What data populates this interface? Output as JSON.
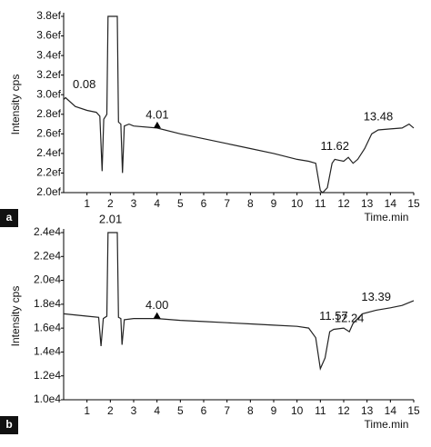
{
  "chart_data": [
    {
      "type": "line",
      "panel_label": "a",
      "ylabel": "Intensity cps",
      "xlabel": "Time.min",
      "color": "#222",
      "xlim": [
        0,
        15
      ],
      "xticks": [
        1,
        2,
        3,
        4,
        5,
        6,
        7,
        8,
        9,
        10,
        11,
        12,
        13,
        14,
        15
      ],
      "ylim": [
        2.0,
        3.8
      ],
      "yticks": [
        {
          "value": 2.0,
          "label": "2.0ef"
        },
        {
          "value": 2.2,
          "label": "2.2ef"
        },
        {
          "value": 2.4,
          "label": "2.4ef"
        },
        {
          "value": 2.6,
          "label": "2.6ef"
        },
        {
          "value": 2.8,
          "label": "2.8ef"
        },
        {
          "value": 3.0,
          "label": "3.0ef"
        },
        {
          "value": 3.2,
          "label": "3.2ef"
        },
        {
          "value": 3.4,
          "label": "3.4ef"
        },
        {
          "value": 3.6,
          "label": "3.6ef"
        },
        {
          "value": 3.8,
          "label": "3.8ef"
        }
      ],
      "x": [
        0,
        0.08,
        0.5,
        1.0,
        1.4,
        1.55,
        1.65,
        1.72,
        1.8,
        1.85,
        1.9,
        2.3,
        2.35,
        2.45,
        2.52,
        2.6,
        2.8,
        3,
        4,
        5,
        6,
        7,
        8,
        9,
        10,
        10.5,
        10.8,
        11.0,
        11.1,
        11.3,
        11.5,
        11.62,
        11.8,
        12.0,
        12.2,
        12.4,
        12.6,
        12.9,
        13.2,
        13.48,
        14,
        14.5,
        14.8,
        15
      ],
      "values": [
        2.95,
        2.97,
        2.88,
        2.84,
        2.82,
        2.78,
        2.22,
        2.75,
        2.78,
        2.8,
        3.8,
        3.8,
        2.72,
        2.7,
        2.2,
        2.68,
        2.7,
        2.68,
        2.66,
        2.6,
        2.55,
        2.5,
        2.45,
        2.4,
        2.34,
        2.32,
        2.3,
        2.02,
        2.0,
        2.05,
        2.3,
        2.34,
        2.33,
        2.32,
        2.36,
        2.3,
        2.34,
        2.45,
        2.6,
        2.64,
        2.65,
        2.66,
        2.7,
        2.66
      ],
      "annotations": [
        {
          "text": "0.08",
          "x": 0.08
        },
        {
          "text": "4.01",
          "x": 4.01,
          "marker": "triangle"
        },
        {
          "text": "11.62",
          "x": 11.62
        },
        {
          "text": "13.48",
          "x": 13.48
        }
      ]
    },
    {
      "type": "line",
      "panel_label": "b",
      "ylabel": "Intensity cps",
      "xlabel": "Time.min",
      "color": "#222",
      "xlim": [
        0,
        15
      ],
      "xticks": [
        1,
        2,
        3,
        4,
        5,
        6,
        7,
        8,
        9,
        10,
        11,
        12,
        13,
        14,
        15
      ],
      "ylim": [
        10000,
        24000
      ],
      "yticks": [
        {
          "value": 10000,
          "label": "1.0e4"
        },
        {
          "value": 12000,
          "label": "1.2e4"
        },
        {
          "value": 14000,
          "label": "1.4e4"
        },
        {
          "value": 16000,
          "label": "1.6e4"
        },
        {
          "value": 18000,
          "label": "1.8e4"
        },
        {
          "value": 20000,
          "label": "2.0e4"
        },
        {
          "value": 22000,
          "label": "2.2e4"
        },
        {
          "value": 24000,
          "label": "2.4e4"
        }
      ],
      "x": [
        0,
        1,
        1.5,
        1.6,
        1.7,
        1.85,
        1.9,
        2.3,
        2.35,
        2.45,
        2.5,
        2.6,
        3,
        4,
        5,
        6,
        7,
        8,
        9,
        10,
        10.5,
        10.8,
        11.0,
        11.2,
        11.4,
        11.57,
        12.0,
        12.24,
        12.4,
        12.8,
        13.39,
        14,
        14.5,
        15
      ],
      "values": [
        17200,
        17000,
        16900,
        14500,
        16800,
        17000,
        24000,
        24000,
        16900,
        16800,
        14600,
        16700,
        16800,
        16800,
        16650,
        16550,
        16450,
        16350,
        16250,
        16150,
        16000,
        15200,
        12600,
        13500,
        15700,
        15900,
        16000,
        15700,
        16400,
        17200,
        17500,
        17700,
        17900,
        18300
      ],
      "annotations": [
        {
          "text": "2.01",
          "x": 2.01
        },
        {
          "text": "4.00",
          "x": 4.0,
          "marker": "triangle"
        },
        {
          "text": "11.57",
          "x": 11.57
        },
        {
          "text": "12.24",
          "x": 12.24
        },
        {
          "text": "13.39",
          "x": 13.39
        }
      ]
    }
  ]
}
